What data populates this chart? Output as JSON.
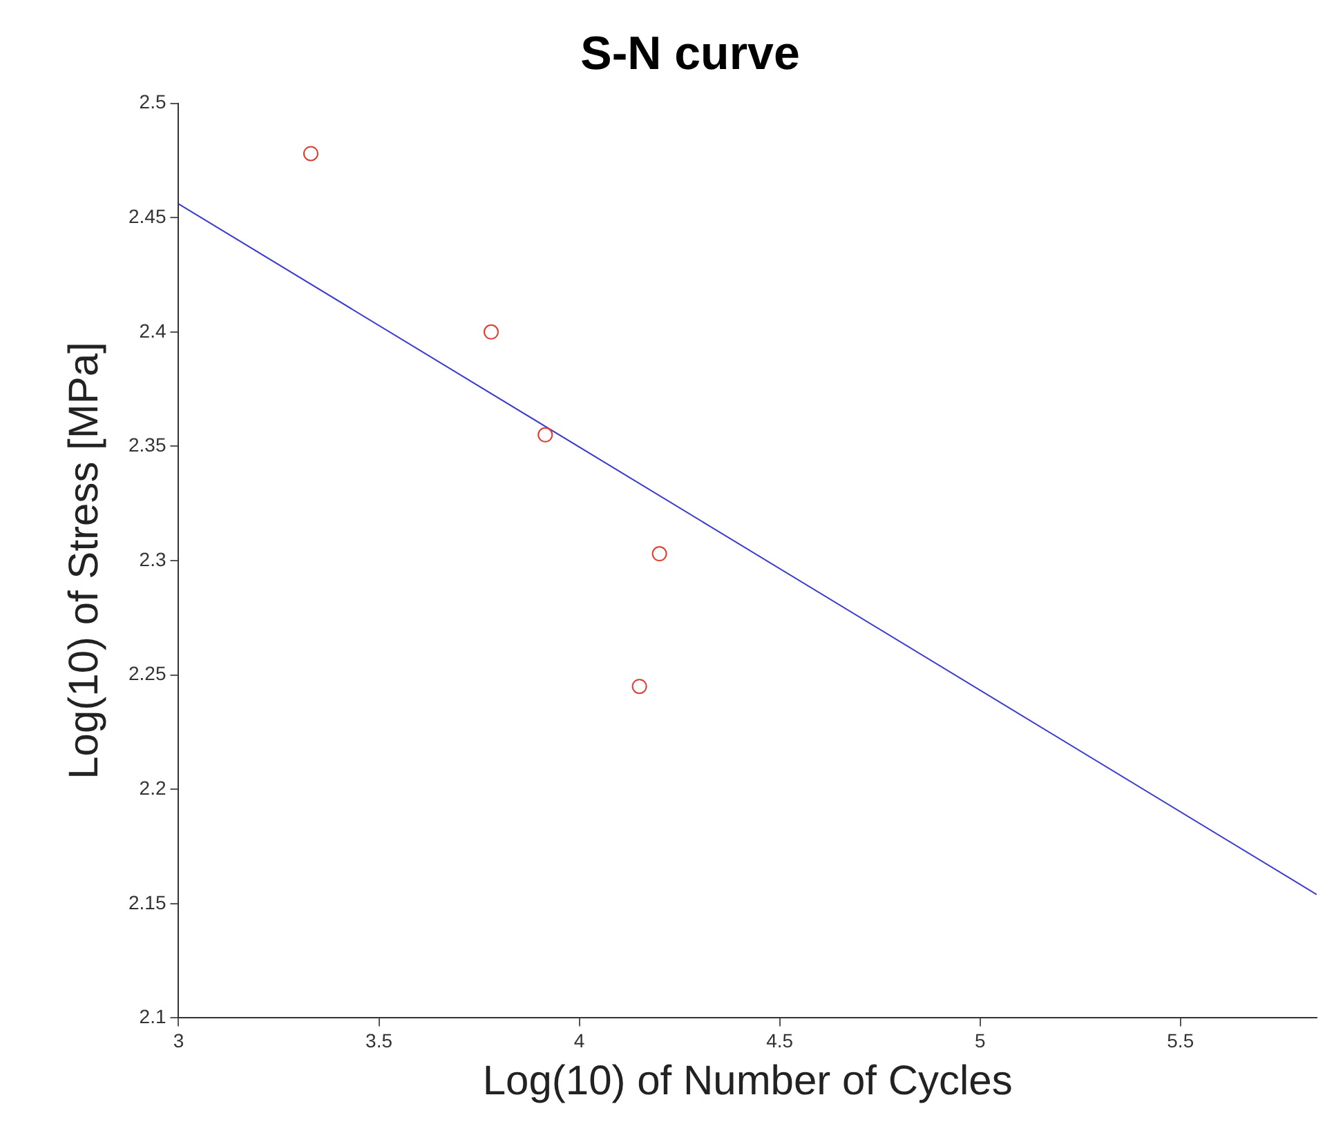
{
  "chart_data": {
    "type": "scatter",
    "title": "S-N curve",
    "xlabel": "Log(10) of Number of Cycles",
    "ylabel": "Log(10) of Stress [MPa]",
    "xlim": [
      3,
      5.84
    ],
    "xticks": [
      3,
      3.5,
      4,
      4.5,
      5,
      5.5
    ],
    "ylim": [
      2.1,
      2.5
    ],
    "yticks": [
      2.1,
      2.15,
      2.2,
      2.25,
      2.3,
      2.35,
      2.4,
      2.45,
      2.5
    ],
    "grid": false,
    "legend": false,
    "series": [
      {
        "marker": "circle",
        "color": "#e03c31",
        "x": [
          3.33,
          3.78,
          3.915,
          4.2,
          4.15
        ],
        "values": [
          2.478,
          2.4,
          2.355,
          2.303,
          2.245
        ]
      },
      {
        "type": "line",
        "marker": "none",
        "line_style": "solid",
        "color": "#3a3ad0",
        "x": [
          3,
          5.84
        ],
        "values": [
          2.456,
          2.154
        ]
      }
    ]
  }
}
